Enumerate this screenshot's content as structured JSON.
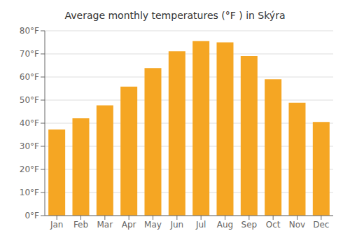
{
  "chart_data": {
    "type": "bar",
    "title": "Average monthly temperatures (°F ) in Skýra",
    "categories": [
      "Jan",
      "Feb",
      "Mar",
      "Apr",
      "May",
      "Jun",
      "Jul",
      "Aug",
      "Sep",
      "Oct",
      "Nov",
      "Dec"
    ],
    "values": [
      37.3,
      42.1,
      47.7,
      55.8,
      63.9,
      71.1,
      75.5,
      75.0,
      69.1,
      59.0,
      48.9,
      40.5
    ],
    "color": "#F5A623",
    "ylim": [
      0,
      80
    ],
    "yticks": [
      {
        "value": 0,
        "label": "0°F"
      },
      {
        "value": 10,
        "label": "10°F"
      },
      {
        "value": 20,
        "label": "20°F"
      },
      {
        "value": 30,
        "label": "30°F"
      },
      {
        "value": 40,
        "label": "40°F"
      },
      {
        "value": 50,
        "label": "50°F"
      },
      {
        "value": 60,
        "label": "60°F"
      },
      {
        "value": 70,
        "label": "70°F"
      },
      {
        "value": 80,
        "label": "80°F"
      }
    ],
    "grid": true
  }
}
